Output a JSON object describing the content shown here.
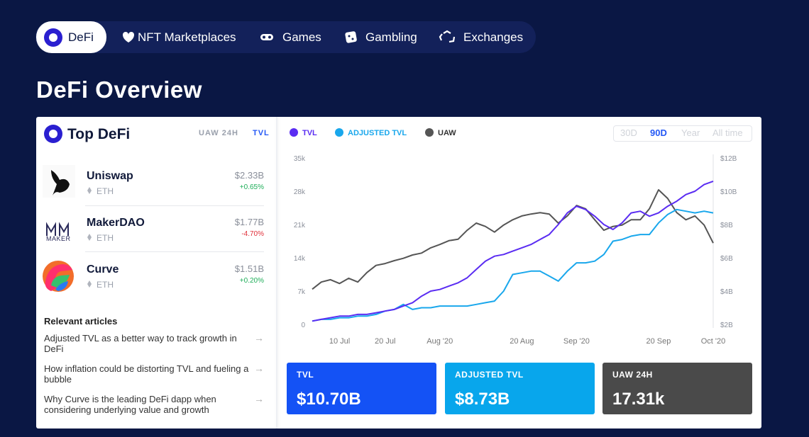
{
  "nav": {
    "tabs": [
      "DeFi",
      "NFT Marketplaces",
      "Games",
      "Gambling",
      "Exchanges"
    ]
  },
  "header": {
    "title": "DeFi Overview"
  },
  "top": {
    "title": "Top DeFi",
    "toggles": [
      "UAW 24H",
      "TVL"
    ],
    "items": [
      {
        "name": "Uniswap",
        "chain": "ETH",
        "value": "$2.33B",
        "change": "+0.65%"
      },
      {
        "name": "MakerDAO",
        "chain": "ETH",
        "value": "$1.77B",
        "change": "-4.70%",
        "logo_text": "MAKER"
      },
      {
        "name": "Curve",
        "chain": "ETH",
        "value": "$1.51B",
        "change": "+0.20%"
      }
    ]
  },
  "articles": {
    "title": "Relevant articles",
    "items": [
      "Adjusted TVL as a better way to track growth in DeFi",
      "How inflation could be distorting TVL and fueling a bubble",
      "Why Curve is the leading DeFi dapp when considering underlying value and growth"
    ]
  },
  "chart_data": {
    "type": "line",
    "categories": [
      null,
      null,
      null,
      "10 Jul",
      null,
      null,
      null,
      null,
      "20 Jul",
      null,
      null,
      null,
      null,
      null,
      "Aug '20",
      null,
      null,
      null,
      null,
      null,
      null,
      null,
      null,
      "20 Aug",
      null,
      null,
      null,
      null,
      null,
      "Sep '20",
      null,
      null,
      null,
      null,
      null,
      null,
      null,
      null,
      "20 Sep",
      null,
      null,
      null,
      null,
      null,
      "Oct '20"
    ],
    "series": [
      {
        "name": "TVL",
        "color": "#5a2cf2",
        "axis": "y2",
        "values": [
          2.2,
          2.3,
          2.4,
          2.5,
          2.5,
          2.6,
          2.6,
          2.7,
          2.8,
          2.9,
          3.1,
          3.3,
          3.7,
          4.0,
          4.1,
          4.3,
          4.5,
          4.8,
          5.3,
          5.8,
          6.1,
          6.2,
          6.4,
          6.6,
          6.8,
          7.1,
          7.4,
          8.0,
          8.7,
          9.1,
          8.9,
          8.5,
          8.0,
          7.7,
          8.1,
          8.7,
          8.8,
          8.5,
          8.7,
          9.1,
          9.4,
          9.8,
          10.0,
          10.4,
          10.6
        ]
      },
      {
        "name": "ADJUSTED TVL",
        "color": "#19a7ec",
        "axis": "y2",
        "values": [
          2.2,
          2.3,
          2.3,
          2.4,
          2.4,
          2.5,
          2.5,
          2.6,
          2.8,
          2.9,
          3.2,
          2.9,
          3.0,
          3.0,
          3.1,
          3.1,
          3.1,
          3.1,
          3.2,
          3.3,
          3.4,
          4.0,
          5.0,
          5.1,
          5.2,
          5.2,
          4.9,
          4.6,
          5.2,
          5.7,
          5.7,
          5.8,
          6.2,
          7.0,
          7.1,
          7.3,
          7.4,
          7.4,
          8.1,
          8.6,
          8.9,
          8.8,
          8.7,
          8.8,
          8.7
        ]
      },
      {
        "name": "UAW",
        "color": "#555555",
        "values": [
          7400,
          8900,
          9400,
          8600,
          9700,
          8900,
          10900,
          12400,
          12800,
          13400,
          13900,
          14600,
          15000,
          16100,
          16800,
          17600,
          17900,
          19800,
          21300,
          20600,
          19400,
          20900,
          22000,
          22800,
          23200,
          23500,
          23200,
          21300,
          22800,
          25000,
          24300,
          22000,
          19800,
          20600,
          20900,
          22000,
          22000,
          24300,
          28300,
          26500,
          23500,
          22000,
          22800,
          20900,
          17100
        ]
      }
    ],
    "ylim": [
      0,
      35000
    ],
    "yticks": [
      0,
      {
        "value": 7000,
        "label": "7k"
      },
      {
        "value": 14000,
        "label": "14k"
      },
      {
        "value": 21000,
        "label": "21k"
      },
      {
        "value": 28000,
        "label": "28k"
      },
      {
        "value": 35000,
        "label": "35k"
      }
    ],
    "y2lim": [
      2,
      12
    ],
    "y2ticks": [
      {
        "value": 2,
        "label": "$2B"
      },
      {
        "value": 4,
        "label": "$4B"
      },
      {
        "value": 6,
        "label": "$6B"
      },
      {
        "value": 8,
        "label": "$8B"
      },
      {
        "value": 10,
        "label": "$10B"
      },
      {
        "value": 12,
        "label": "$12B"
      }
    ],
    "grid": false
  },
  "controls": {
    "ranges": [
      "30D",
      "90D",
      "Year",
      "All time"
    ]
  },
  "stats": [
    {
      "label": "TVL",
      "value": "$10.70B",
      "color": "#1452f5"
    },
    {
      "label": "ADJUSTED TVL",
      "value": "$8.73B",
      "color": "#08a6ec"
    },
    {
      "label": "UAW 24H",
      "value": "17.31k",
      "color": "#4a4a4a"
    }
  ]
}
